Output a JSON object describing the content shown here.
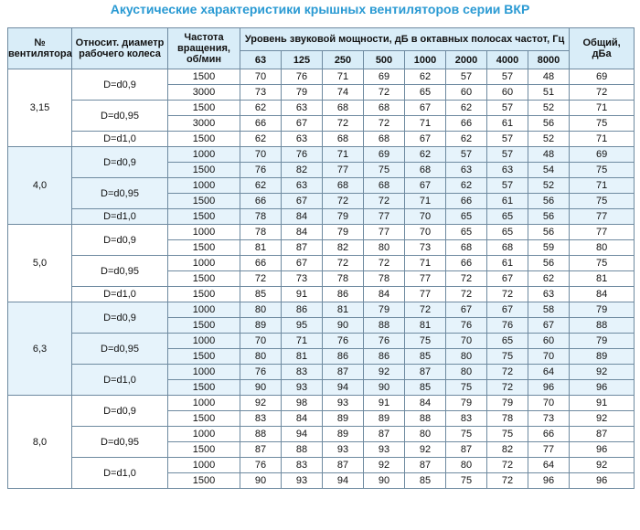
{
  "title": "Акустические характеристики крышных вентиляторов серии ВКР",
  "header": {
    "fan": "№\nвентилятора",
    "diameter": "Относит. диаметр\nрабочего колеса",
    "rpm": "Частота\nвращения,\nоб/мин",
    "levels": "Уровень звуковой мощности, дБ в октавных полосах частот, Гц",
    "total": "Общий,\nдБа",
    "bands": [
      "63",
      "125",
      "250",
      "500",
      "1000",
      "2000",
      "4000",
      "8000"
    ]
  },
  "groups": [
    {
      "fan": "3,15",
      "variants": [
        {
          "diameter": "D=d0,9",
          "rows": [
            {
              "rpm": "1500",
              "levels": [
                "70",
                "76",
                "71",
                "69",
                "62",
                "57",
                "57",
                "48"
              ],
              "total": "69"
            },
            {
              "rpm": "3000",
              "levels": [
                "73",
                "79",
                "74",
                "72",
                "65",
                "60",
                "60",
                "51"
              ],
              "total": "72"
            }
          ]
        },
        {
          "diameter": "D=d0,95",
          "rows": [
            {
              "rpm": "1500",
              "levels": [
                "62",
                "63",
                "68",
                "68",
                "67",
                "62",
                "57",
                "52"
              ],
              "total": "71"
            },
            {
              "rpm": "3000",
              "levels": [
                "66",
                "67",
                "72",
                "72",
                "71",
                "66",
                "61",
                "56"
              ],
              "total": "75"
            }
          ]
        },
        {
          "diameter": "D=d1,0",
          "rows": [
            {
              "rpm": "1500",
              "levels": [
                "62",
                "63",
                "68",
                "68",
                "67",
                "62",
                "57",
                "52"
              ],
              "total": "71"
            }
          ]
        }
      ]
    },
    {
      "fan": "4,0",
      "variants": [
        {
          "diameter": "D=d0,9",
          "rows": [
            {
              "rpm": "1000",
              "levels": [
                "70",
                "76",
                "71",
                "69",
                "62",
                "57",
                "57",
                "48"
              ],
              "total": "69"
            },
            {
              "rpm": "1500",
              "levels": [
                "76",
                "82",
                "77",
                "75",
                "68",
                "63",
                "63",
                "54"
              ],
              "total": "75"
            }
          ]
        },
        {
          "diameter": "D=d0,95",
          "rows": [
            {
              "rpm": "1000",
              "levels": [
                "62",
                "63",
                "68",
                "68",
                "67",
                "62",
                "57",
                "52"
              ],
              "total": "71"
            },
            {
              "rpm": "1500",
              "levels": [
                "66",
                "67",
                "72",
                "72",
                "71",
                "66",
                "61",
                "56"
              ],
              "total": "75"
            }
          ]
        },
        {
          "diameter": "D=d1,0",
          "rows": [
            {
              "rpm": "1500",
              "levels": [
                "78",
                "84",
                "79",
                "77",
                "70",
                "65",
                "65",
                "56"
              ],
              "total": "77"
            }
          ]
        }
      ]
    },
    {
      "fan": "5,0",
      "variants": [
        {
          "diameter": "D=d0,9",
          "rows": [
            {
              "rpm": "1000",
              "levels": [
                "78",
                "84",
                "79",
                "77",
                "70",
                "65",
                "65",
                "56"
              ],
              "total": "77"
            },
            {
              "rpm": "1500",
              "levels": [
                "81",
                "87",
                "82",
                "80",
                "73",
                "68",
                "68",
                "59"
              ],
              "total": "80"
            }
          ]
        },
        {
          "diameter": "D=d0,95",
          "rows": [
            {
              "rpm": "1000",
              "levels": [
                "66",
                "67",
                "72",
                "72",
                "71",
                "66",
                "61",
                "56"
              ],
              "total": "75"
            },
            {
              "rpm": "1500",
              "levels": [
                "72",
                "73",
                "78",
                "78",
                "77",
                "72",
                "67",
                "62"
              ],
              "total": "81"
            }
          ]
        },
        {
          "diameter": "D=d1,0",
          "rows": [
            {
              "rpm": "1500",
              "levels": [
                "85",
                "91",
                "86",
                "84",
                "77",
                "72",
                "72",
                "63"
              ],
              "total": "84"
            }
          ]
        }
      ]
    },
    {
      "fan": "6,3",
      "variants": [
        {
          "diameter": "D=d0,9",
          "rows": [
            {
              "rpm": "1000",
              "levels": [
                "80",
                "86",
                "81",
                "79",
                "72",
                "67",
                "67",
                "58"
              ],
              "total": "79"
            },
            {
              "rpm": "1500",
              "levels": [
                "89",
                "95",
                "90",
                "88",
                "81",
                "76",
                "76",
                "67"
              ],
              "total": "88"
            }
          ]
        },
        {
          "diameter": "D=d0,95",
          "rows": [
            {
              "rpm": "1000",
              "levels": [
                "70",
                "71",
                "76",
                "76",
                "75",
                "70",
                "65",
                "60"
              ],
              "total": "79"
            },
            {
              "rpm": "1500",
              "levels": [
                "80",
                "81",
                "86",
                "86",
                "85",
                "80",
                "75",
                "70"
              ],
              "total": "89"
            }
          ]
        },
        {
          "diameter": "D=d1,0",
          "rows": [
            {
              "rpm": "1000",
              "levels": [
                "76",
                "83",
                "87",
                "92",
                "87",
                "80",
                "72",
                "64"
              ],
              "total": "92"
            },
            {
              "rpm": "1500",
              "levels": [
                "90",
                "93",
                "94",
                "90",
                "85",
                "75",
                "72",
                "96"
              ],
              "total": "96"
            }
          ]
        }
      ]
    },
    {
      "fan": "8,0",
      "variants": [
        {
          "diameter": "D=d0,9",
          "rows": [
            {
              "rpm": "1000",
              "levels": [
                "92",
                "98",
                "93",
                "91",
                "84",
                "79",
                "79",
                "70"
              ],
              "total": "91"
            },
            {
              "rpm": "1500",
              "levels": [
                "83",
                "84",
                "89",
                "89",
                "88",
                "83",
                "78",
                "73"
              ],
              "total": "92"
            }
          ]
        },
        {
          "diameter": "D=d0,95",
          "rows": [
            {
              "rpm": "1000",
              "levels": [
                "88",
                "94",
                "89",
                "87",
                "80",
                "75",
                "75",
                "66"
              ],
              "total": "87"
            },
            {
              "rpm": "1500",
              "levels": [
                "87",
                "88",
                "93",
                "93",
                "92",
                "87",
                "82",
                "77"
              ],
              "total": "96"
            }
          ]
        },
        {
          "diameter": "D=d1,0",
          "rows": [
            {
              "rpm": "1000",
              "levels": [
                "76",
                "83",
                "87",
                "92",
                "87",
                "80",
                "72",
                "64"
              ],
              "total": "92"
            },
            {
              "rpm": "1500",
              "levels": [
                "90",
                "93",
                "94",
                "90",
                "85",
                "75",
                "72",
                "96"
              ],
              "total": "96"
            }
          ]
        }
      ]
    }
  ]
}
